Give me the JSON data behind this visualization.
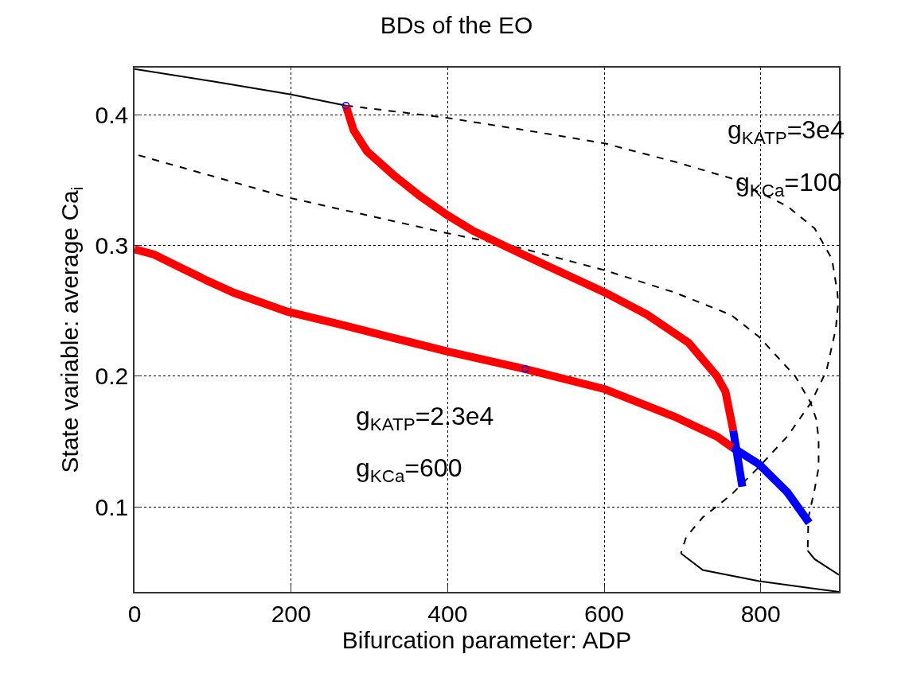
{
  "chart_data": {
    "type": "line",
    "title": "BDs of the EO",
    "xlabel": "Bifurcation parameter: ADP",
    "ylabel": "State variable: average Ca$_{i}$",
    "xlim": [
      0,
      900
    ],
    "xticks": [
      0,
      200,
      400,
      600,
      800
    ],
    "ylim": [
      0.035,
      0.436
    ],
    "yticks": [
      0.1,
      0.2,
      0.3,
      0.4
    ],
    "grid": true,
    "series": [
      {
        "color": "#000000",
        "line_style": "solid",
        "x": [
          0,
          100,
          200,
          270
        ],
        "values": [
          0.435,
          0.4255,
          0.4155,
          0.407
        ]
      },
      {
        "color": "#000000",
        "line_style": "dashed",
        "x": [
          270,
          399,
          501,
          601,
          690,
          762,
          834,
          869,
          891,
          898,
          899,
          896,
          884,
          864,
          834,
          798,
          762,
          726,
          705,
          698
        ],
        "values": [
          0.407,
          0.3976,
          0.388,
          0.378,
          0.364,
          0.3514,
          0.33,
          0.313,
          0.2896,
          0.264,
          0.256,
          0.2365,
          0.204,
          0.1795,
          0.1539,
          0.1307,
          0.1091,
          0.092,
          0.0772,
          0.0645
        ]
      },
      {
        "color": "#000000",
        "line_style": "solid",
        "x": [
          698,
          726,
          798,
          900
        ],
        "values": [
          0.0645,
          0.0517,
          0.0432,
          0.035
        ]
      },
      {
        "color": "#000000",
        "line_style": "dashed",
        "x": [
          5,
          195,
          399,
          493,
          601,
          690,
          762,
          798,
          844,
          864,
          871,
          874,
          874,
          869,
          861,
          860
        ],
        "values": [
          0.369,
          0.3368,
          0.3094,
          0.298,
          0.281,
          0.264,
          0.2469,
          0.23,
          0.2,
          0.1795,
          0.167,
          0.152,
          0.13,
          0.1137,
          0.092,
          0.0665
        ]
      },
      {
        "color": "#000000",
        "line_style": "solid",
        "x": [
          860,
          869,
          900
        ],
        "values": [
          0.0665,
          0.06,
          0.048
        ]
      },
      {
        "color": "#ff0000",
        "line_style": "solid",
        "x": [
          270,
          280,
          297,
          331,
          365,
          399,
          433,
          493,
          601,
          655,
          708,
          744,
          755,
          765
        ],
        "values": [
          0.407,
          0.388,
          0.372,
          0.3538,
          0.3376,
          0.3234,
          0.311,
          0.2939,
          0.264,
          0.247,
          0.2255,
          0.2,
          0.1881,
          0.1582
        ]
      },
      {
        "color": "#0000ff",
        "line_style": "solid",
        "x": [
          765,
          776.5
        ],
        "values": [
          0.1582,
          0.1155
        ]
      },
      {
        "color": "#ff0000",
        "line_style": "solid",
        "x": [
          0,
          25,
          59,
          93,
          127,
          195,
          263,
          331,
          399,
          499,
          601,
          690,
          744,
          764
        ],
        "values": [
          0.297,
          0.293,
          0.283,
          0.273,
          0.2638,
          0.2494,
          0.2395,
          0.2292,
          0.219,
          0.2055,
          0.19,
          0.169,
          0.1539,
          0.1454
        ]
      },
      {
        "color": "#0000ff",
        "line_style": "solid",
        "x": [
          764,
          798,
          834,
          862
        ],
        "values": [
          0.1454,
          0.1326,
          0.1112,
          0.0878
        ]
      },
      {
        "type": "scatter",
        "color": "#0000ff",
        "marker": "circle",
        "x": [
          270,
          499
        ],
        "values": [
          0.407,
          0.2055
        ]
      }
    ],
    "annotations": [
      "g$_{KATP}$=3e4",
      "g$_{KCa}$=100",
      "g$_{KATP}$=2.3e4",
      "g$_{KCa}$=600"
    ]
  }
}
